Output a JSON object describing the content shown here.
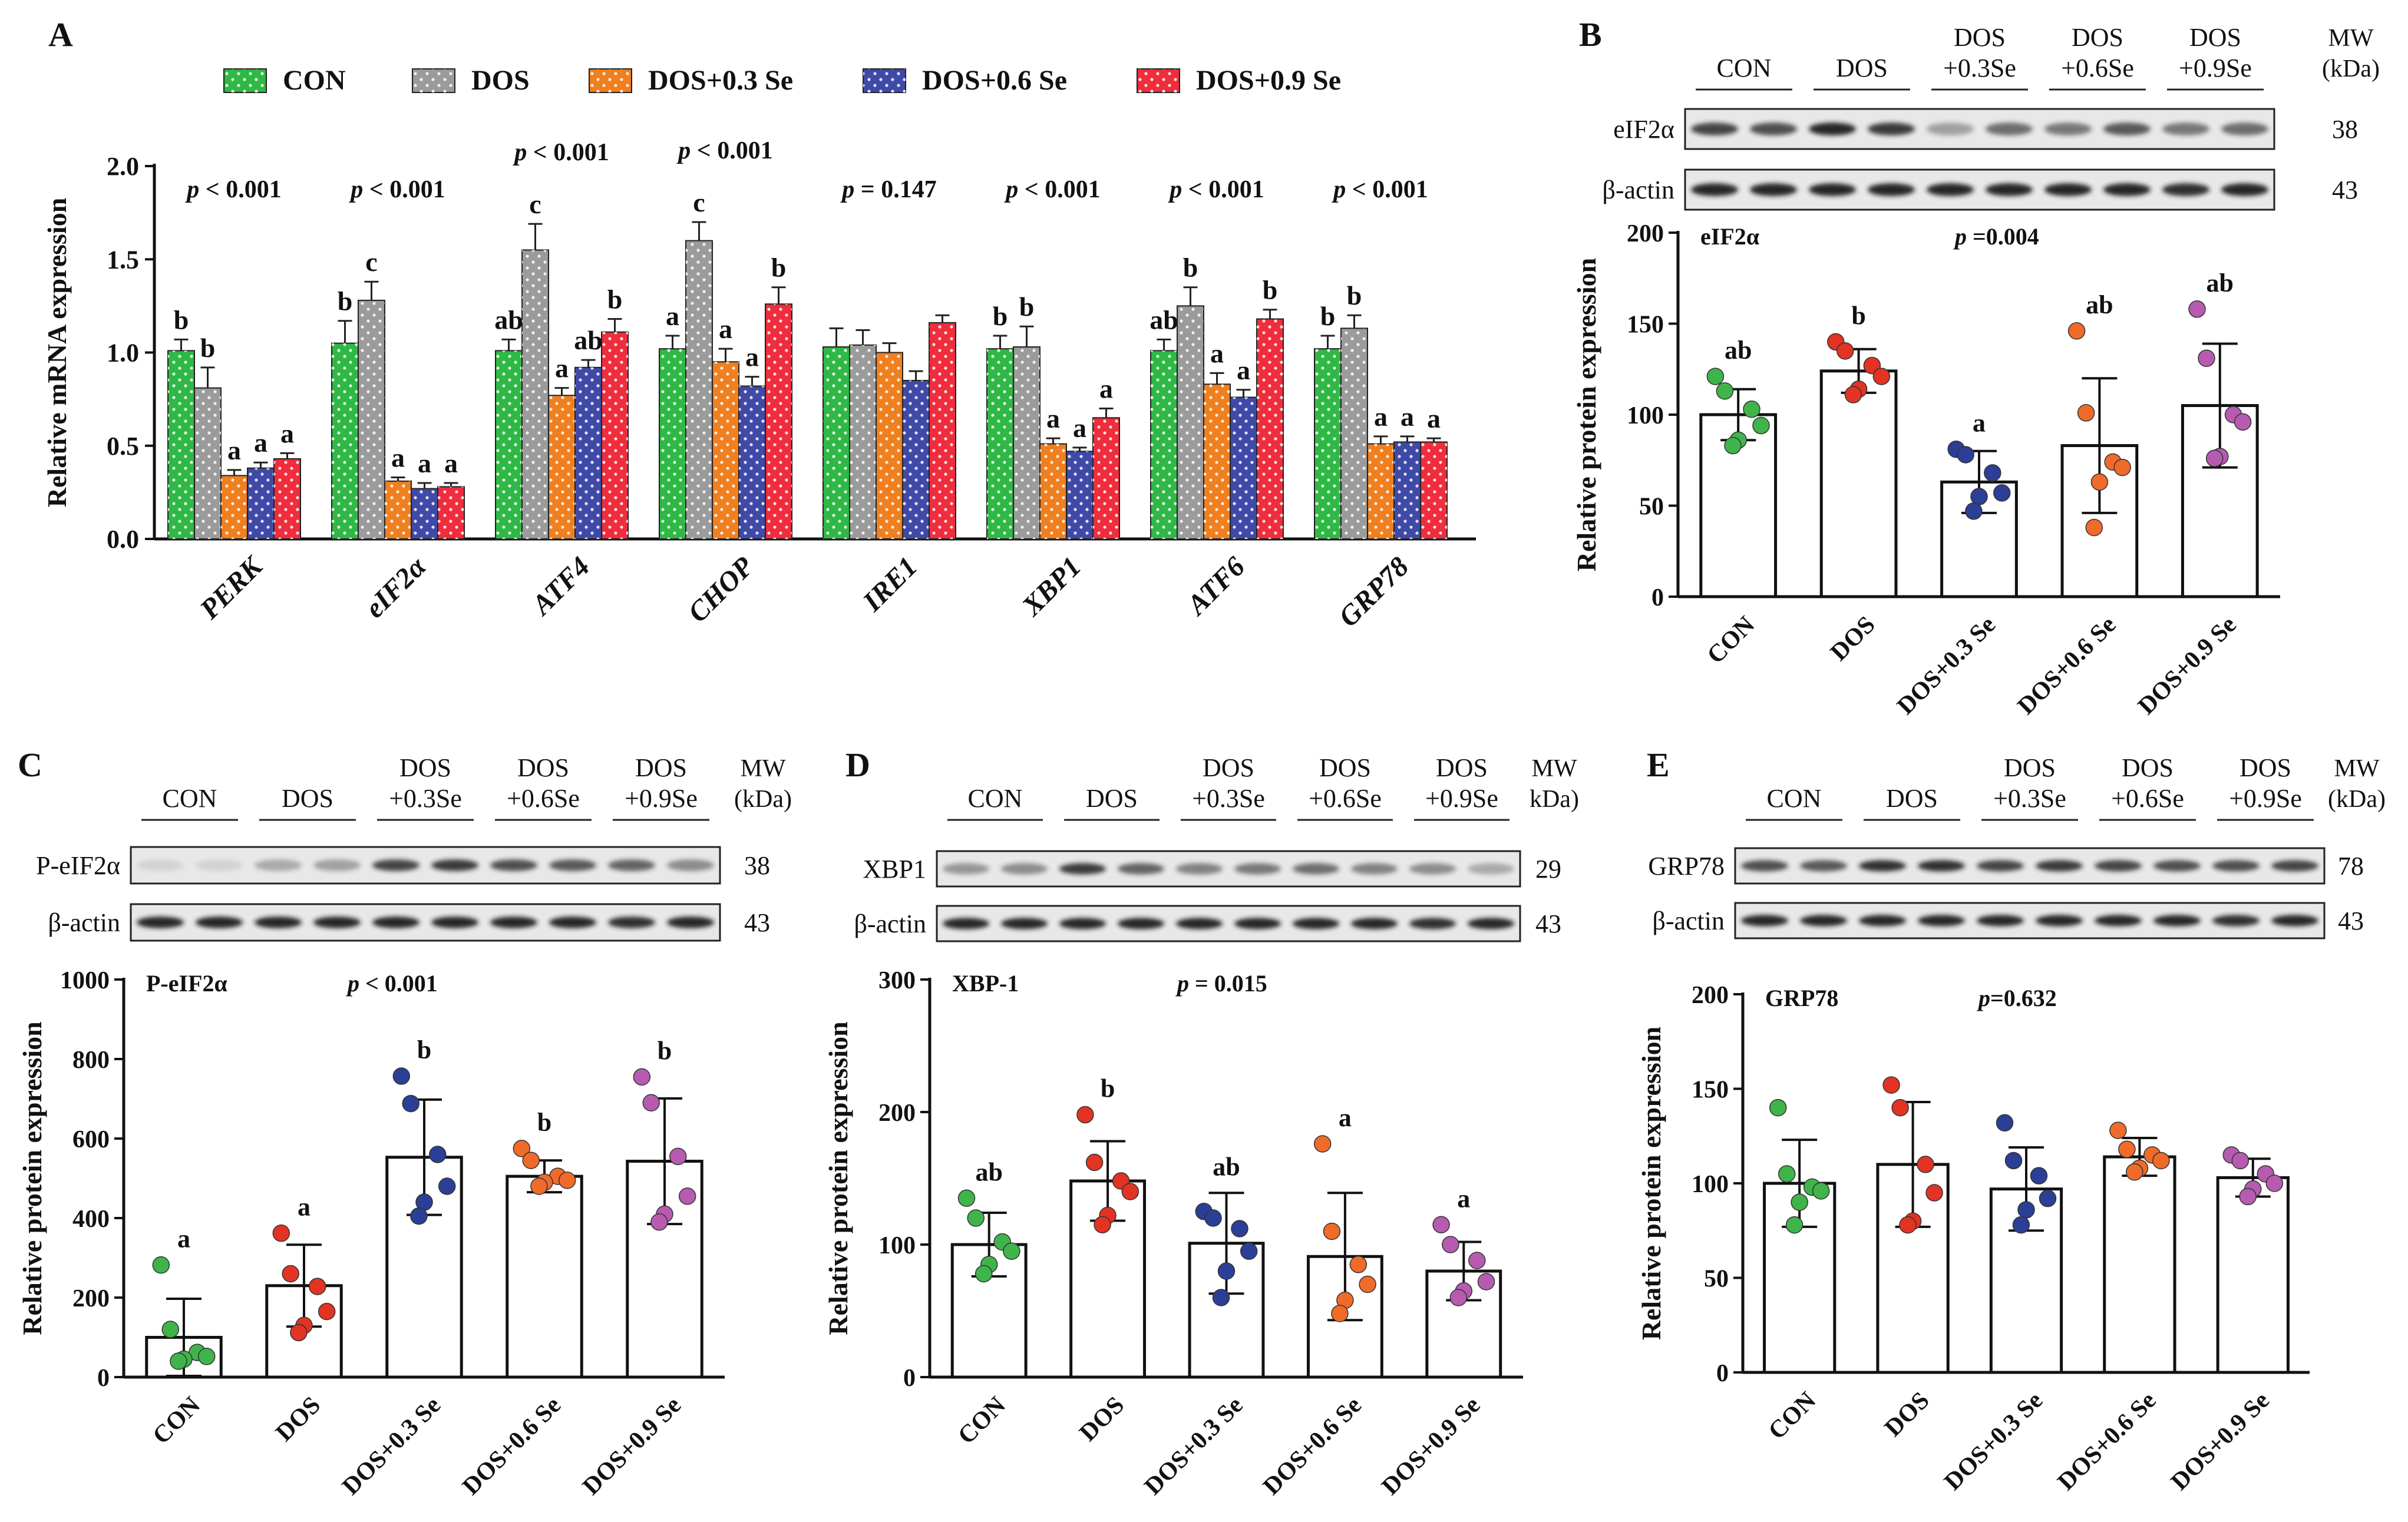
{
  "colors": {
    "CON": "#2fb845",
    "DOS": "#9b9b9b",
    "DOS+0.3 Se": "#f07f1f",
    "DOS+0.6 Se": "#3f4aa8",
    "DOS+0.9 Se": "#ef2d3d",
    "dot_CON": "#3fb44a",
    "dot_DOS": "#e23323",
    "dot_DOS+0.3 Se": "#2b3f96",
    "dot_DOS+0.6 Se": "#f06a2a",
    "dot_DOS+0.9 Se": "#b65bb0",
    "blot_bg": "#e8e8e8",
    "band": "#1a1a1a"
  },
  "chart_data": [
    {
      "panel": "A",
      "type": "bar",
      "ylabel": "Relative mRNA expression",
      "ylim": [
        0,
        2.0
      ],
      "yticks": [
        "0.0",
        "0.5",
        "1.0",
        "1.5",
        "2.0"
      ],
      "legend": [
        "CON",
        "DOS",
        "DOS+0.3 Se",
        "DOS+0.6 Se",
        "DOS+0.9 Se"
      ],
      "categories": [
        "PERK",
        "eIF2α",
        "ATF4",
        "CHOP",
        "IRE1",
        "XBP1",
        "ATF6",
        "GRP78"
      ],
      "series": [
        {
          "name": "CON",
          "values": [
            1.01,
            1.05,
            1.01,
            1.02,
            1.03,
            1.02,
            1.01,
            1.02
          ],
          "err": [
            0.06,
            0.12,
            0.06,
            0.07,
            0.1,
            0.07,
            0.06,
            0.07
          ]
        },
        {
          "name": "DOS",
          "values": [
            0.81,
            1.28,
            1.55,
            1.6,
            1.04,
            1.03,
            1.25,
            1.13
          ],
          "err": [
            0.11,
            0.1,
            0.14,
            0.1,
            0.08,
            0.11,
            0.1,
            0.07
          ]
        },
        {
          "name": "DOS+0.3 Se",
          "values": [
            0.34,
            0.31,
            0.77,
            0.95,
            1.0,
            0.51,
            0.83,
            0.51
          ],
          "err": [
            0.03,
            0.02,
            0.04,
            0.07,
            0.05,
            0.03,
            0.06,
            0.04
          ]
        },
        {
          "name": "DOS+0.6 Se",
          "values": [
            0.38,
            0.27,
            0.92,
            0.82,
            0.85,
            0.47,
            0.76,
            0.52
          ],
          "err": [
            0.03,
            0.03,
            0.04,
            0.05,
            0.05,
            0.02,
            0.04,
            0.03
          ]
        },
        {
          "name": "DOS+0.9 Se",
          "values": [
            0.43,
            0.28,
            1.11,
            1.26,
            1.16,
            0.65,
            1.18,
            0.52
          ],
          "err": [
            0.03,
            0.02,
            0.07,
            0.09,
            0.04,
            0.05,
            0.05,
            0.02
          ]
        }
      ],
      "letters": [
        [
          "b",
          "b",
          "a",
          "a",
          "a"
        ],
        [
          "b",
          "c",
          "a",
          "a",
          "a"
        ],
        [
          "ab",
          "c",
          "a",
          "ab",
          "b"
        ],
        [
          "a",
          "c",
          "a",
          "a",
          "b"
        ],
        [
          "",
          "",
          "",
          "",
          ""
        ],
        [
          "b",
          "b",
          "a",
          "a",
          "a"
        ],
        [
          "ab",
          "b",
          "a",
          "a",
          "b"
        ],
        [
          "b",
          "b",
          "a",
          "a",
          "a"
        ]
      ],
      "pvalues": [
        [
          "p",
          " < 0.001"
        ],
        [
          "p",
          " < 0.001"
        ],
        [
          "p",
          " < 0.001"
        ],
        [
          "p",
          " < 0.001"
        ],
        [
          "p",
          " = 0.147"
        ],
        [
          "p",
          " < 0.001"
        ],
        [
          "p",
          " < 0.001"
        ],
        [
          "p",
          " < 0.001"
        ]
      ]
    },
    {
      "panel": "B",
      "type": "bar",
      "protein": "eIF2α",
      "p_value": [
        "p",
        " =0.004"
      ],
      "ylabel": "Relative protein expression",
      "ylim": [
        0,
        200
      ],
      "yticks": [
        "0",
        "50",
        "100",
        "150",
        "200"
      ],
      "categories": [
        "CON",
        "DOS",
        "DOS+0.3 Se",
        "DOS+0.6 Se",
        "DOS+0.9 Se"
      ],
      "means": [
        100,
        124,
        63,
        83,
        105
      ],
      "sd": [
        14,
        12,
        17,
        37,
        34
      ],
      "letters": [
        "ab",
        "b",
        "a",
        "ab",
        "ab"
      ],
      "points": [
        [
          121,
          113,
          103,
          94,
          86,
          83
        ],
        [
          140,
          135,
          127,
          121,
          114,
          111
        ],
        [
          81,
          78,
          68,
          57,
          55,
          47
        ],
        [
          146,
          101,
          74,
          71,
          63,
          38
        ],
        [
          158,
          131,
          100,
          96,
          77,
          76
        ]
      ],
      "blot": {
        "header": [
          [
            "CON"
          ],
          [
            "DOS"
          ],
          [
            "DOS",
            "+0.3Se"
          ],
          [
            "DOS",
            "+0.6Se"
          ],
          [
            "DOS",
            "+0.9Se"
          ]
        ],
        "mw_label": [
          "MW",
          "(kDa)"
        ],
        "rows": [
          {
            "label": "eIF2α",
            "mw": "38",
            "intensity": [
              0.8,
              0.75,
              0.95,
              0.85,
              0.35,
              0.6,
              0.55,
              0.7,
              0.55,
              0.6
            ]
          },
          {
            "label": "β-actin",
            "mw": "43",
            "intensity": [
              0.95,
              0.95,
              0.95,
              0.95,
              0.95,
              0.95,
              0.95,
              0.95,
              0.9,
              0.95
            ]
          }
        ]
      }
    },
    {
      "panel": "C",
      "type": "bar",
      "protein": "P-eIF2α",
      "p_value": [
        "p",
        " < 0.001"
      ],
      "ylabel": "Relative protein expression",
      "ylim": [
        0,
        1000
      ],
      "yticks": [
        "0",
        "200",
        "400",
        "600",
        "800",
        "1000"
      ],
      "categories": [
        "CON",
        "DOS",
        "DOS+0.3 Se",
        "DOS+0.6 Se",
        "DOS+0.9 Se"
      ],
      "means": [
        100,
        230,
        553,
        505,
        543
      ],
      "sd": [
        97,
        103,
        145,
        40,
        158
      ],
      "letters": [
        "a",
        "a",
        "b",
        "b",
        "b"
      ],
      "points": [
        [
          282,
          120,
          62,
          52,
          45,
          40
        ],
        [
          362,
          260,
          228,
          165,
          130,
          112
        ],
        [
          757,
          688,
          560,
          480,
          440,
          405
        ],
        [
          575,
          545,
          505,
          495,
          490,
          480
        ],
        [
          755,
          690,
          555,
          455,
          410,
          390
        ]
      ],
      "blot": {
        "header": [
          [
            "CON"
          ],
          [
            "DOS"
          ],
          [
            "DOS",
            "+0.3Se"
          ],
          [
            "DOS",
            "+0.6Se"
          ],
          [
            "DOS",
            "+0.9Se"
          ]
        ],
        "mw_label": [
          "MW",
          "(kDa)"
        ],
        "rows": [
          {
            "label": "P-eIF2α",
            "mw": "38",
            "intensity": [
              0.1,
              0.1,
              0.3,
              0.35,
              0.8,
              0.85,
              0.75,
              0.7,
              0.65,
              0.45
            ]
          },
          {
            "label": "β-actin",
            "mw": "43",
            "intensity": [
              0.95,
              0.95,
              0.95,
              0.95,
              0.95,
              0.95,
              0.95,
              0.95,
              0.9,
              0.95
            ]
          }
        ]
      }
    },
    {
      "panel": "D",
      "type": "bar",
      "protein": "XBP-1",
      "p_value": [
        "p",
        " = 0.015"
      ],
      "ylabel": "Relative protein expression",
      "ylim": [
        0,
        300
      ],
      "yticks": [
        "0",
        "100",
        "200",
        "300"
      ],
      "categories": [
        "CON",
        "DOS",
        "DOS+0.3 Se",
        "DOS+0.6 Se",
        "DOS+0.9 Se"
      ],
      "means": [
        100,
        148,
        101,
        91,
        80
      ],
      "sd": [
        24,
        30,
        38,
        48,
        22
      ],
      "letters": [
        "ab",
        "b",
        "ab",
        "a",
        "a"
      ],
      "points": [
        [
          135,
          120,
          102,
          95,
          85,
          78
        ],
        [
          198,
          162,
          148,
          140,
          122,
          115
        ],
        [
          125,
          120,
          112,
          95,
          80,
          60
        ],
        [
          176,
          110,
          85,
          70,
          58,
          48
        ],
        [
          115,
          100,
          88,
          72,
          65,
          60
        ]
      ],
      "blot": {
        "header": [
          [
            "CON"
          ],
          [
            "DOS"
          ],
          [
            "DOS",
            "+0.3Se"
          ],
          [
            "DOS",
            "+0.6Se"
          ],
          [
            "DOS",
            "+0.9Se"
          ]
        ],
        "mw_label": [
          "MW",
          "kDa)"
        ],
        "rows": [
          {
            "label": "XBP1",
            "mw": "29",
            "intensity": [
              0.4,
              0.45,
              0.85,
              0.65,
              0.5,
              0.55,
              0.6,
              0.5,
              0.45,
              0.3
            ]
          },
          {
            "label": "β-actin",
            "mw": "43",
            "intensity": [
              0.95,
              0.95,
              0.95,
              0.95,
              0.95,
              0.95,
              0.95,
              0.95,
              0.9,
              0.95
            ]
          }
        ]
      }
    },
    {
      "panel": "E",
      "type": "bar",
      "protein": "GRP78",
      "p_value": [
        "p",
        "=0.632"
      ],
      "ylabel": "Relative protein expression",
      "ylim": [
        0,
        200
      ],
      "yticks": [
        "0",
        "50",
        "100",
        "150",
        "200"
      ],
      "categories": [
        "CON",
        "DOS",
        "DOS+0.3 Se",
        "DOS+0.6 Se",
        "DOS+0.9 Se"
      ],
      "means": [
        100,
        110,
        97,
        114,
        103
      ],
      "sd": [
        23,
        33,
        22,
        10,
        10
      ],
      "letters": [
        "",
        "",
        "",
        "",
        ""
      ],
      "points": [
        [
          140,
          105,
          98,
          96,
          90,
          78
        ],
        [
          152,
          140,
          110,
          95,
          80,
          78
        ],
        [
          132,
          112,
          104,
          92,
          86,
          78
        ],
        [
          128,
          118,
          115,
          112,
          108,
          106
        ],
        [
          115,
          112,
          105,
          100,
          97,
          93
        ]
      ],
      "blot": {
        "header": [
          [
            "CON"
          ],
          [
            "DOS"
          ],
          [
            "DOS",
            "+0.3Se"
          ],
          [
            "DOS",
            "+0.6Se"
          ],
          [
            "DOS",
            "+0.9Se"
          ]
        ],
        "mw_label": [
          "MW",
          "(kDa)"
        ],
        "rows": [
          {
            "label": "GRP78",
            "mw": "78",
            "intensity": [
              0.75,
              0.7,
              0.9,
              0.9,
              0.8,
              0.85,
              0.8,
              0.75,
              0.75,
              0.8
            ]
          },
          {
            "label": "β-actin",
            "mw": "43",
            "intensity": [
              0.95,
              0.95,
              0.95,
              0.95,
              0.95,
              0.95,
              0.95,
              0.95,
              0.9,
              0.95
            ]
          }
        ]
      }
    }
  ]
}
